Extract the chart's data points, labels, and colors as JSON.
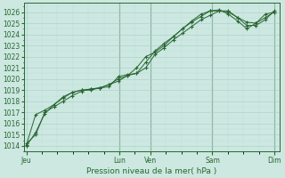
{
  "background_color": "#cce8e0",
  "grid_color_major": "#aacccc",
  "grid_color_minor": "#bbdddd",
  "line_color": "#2a6632",
  "marker_color": "#2a6632",
  "ylabel_ticks": [
    1014,
    1015,
    1016,
    1017,
    1018,
    1019,
    1020,
    1021,
    1022,
    1023,
    1024,
    1025,
    1026
  ],
  "ylim": [
    1013.5,
    1026.8
  ],
  "xlabel": "Pression niveau de la mer( hPa )",
  "day_labels": [
    "Jeu",
    "Lun",
    "Ven",
    "Sam",
    "Dim"
  ],
  "day_positions": [
    0.0,
    0.375,
    0.5,
    0.75,
    1.0
  ],
  "series1": [
    1014.0,
    1015.2,
    1016.9,
    1017.7,
    1018.3,
    1018.8,
    1019.0,
    1019.1,
    1019.2,
    1019.5,
    1019.8,
    1020.3,
    1020.5,
    1021.0,
    1022.2,
    1022.8,
    1023.5,
    1024.1,
    1024.7,
    1025.3,
    1025.7,
    1026.1,
    1026.1,
    1025.5,
    1025.1,
    1025.0,
    1025.8,
    1026.0
  ],
  "series2": [
    1014.1,
    1016.8,
    1017.2,
    1017.7,
    1018.4,
    1018.8,
    1019.0,
    1019.0,
    1019.2,
    1019.3,
    1020.2,
    1020.4,
    1020.5,
    1021.5,
    1022.5,
    1023.2,
    1023.8,
    1024.5,
    1025.1,
    1025.6,
    1026.1,
    1026.2,
    1025.8,
    1025.2,
    1024.5,
    1025.0,
    1025.5,
    1026.0
  ],
  "series3": [
    1014.2,
    1015.0,
    1017.0,
    1017.5,
    1018.0,
    1018.5,
    1018.9,
    1019.1,
    1019.2,
    1019.5,
    1020.0,
    1020.3,
    1021.0,
    1022.0,
    1022.4,
    1023.0,
    1023.8,
    1024.5,
    1025.2,
    1025.8,
    1026.1,
    1026.1,
    1026.0,
    1025.5,
    1024.8,
    1024.8,
    1025.3,
    1026.1
  ],
  "n_points": 28,
  "vline_positions": [
    0.375,
    0.5,
    0.75,
    1.0
  ]
}
